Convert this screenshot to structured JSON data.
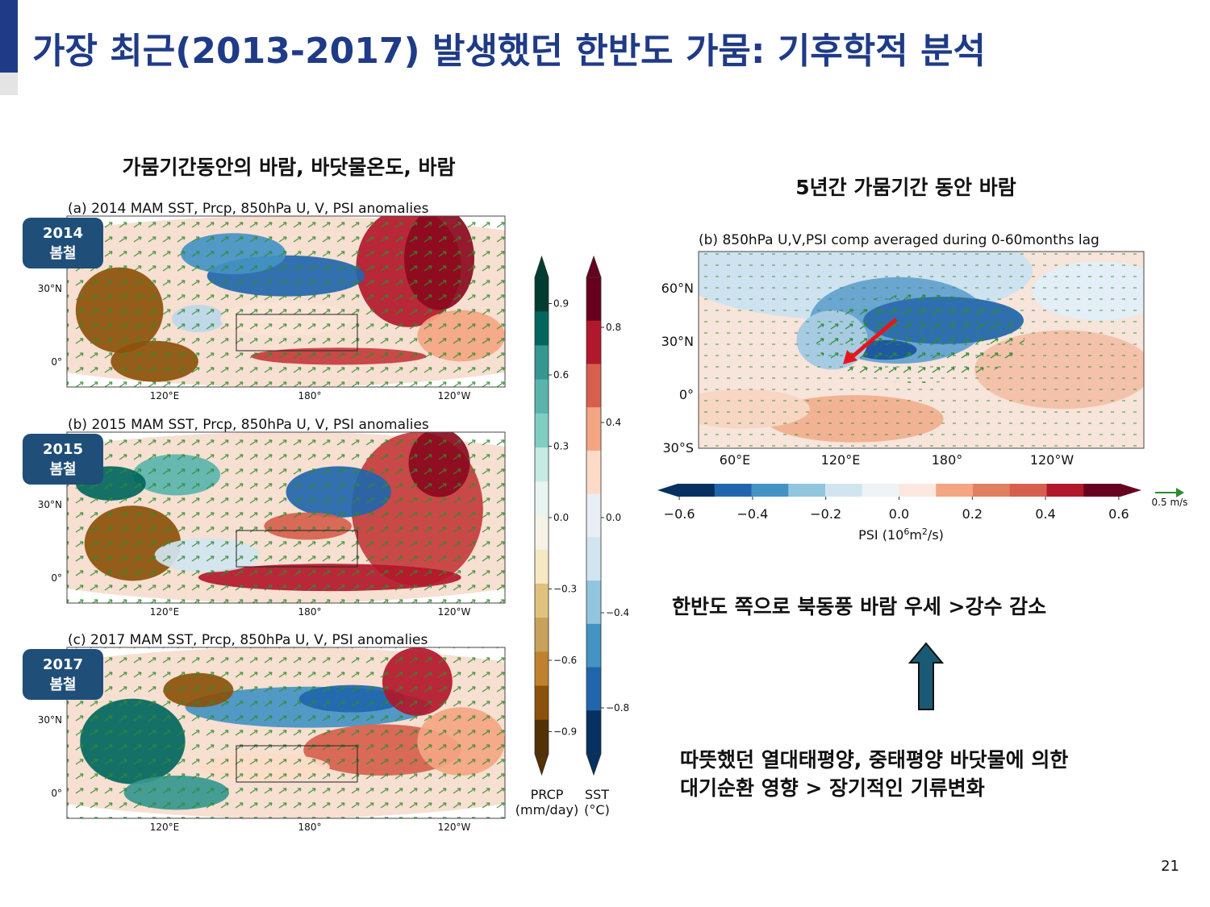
{
  "header": {
    "title": "가장 최근(2013-2017) 발생했던 한반도 가뭄: 기후학적 분석"
  },
  "left": {
    "heading": "가뭄기간동안의 바람, 바닷물온도, 바람",
    "panels": [
      {
        "title": "(a) 2014 MAM SST, Prcp, 850hPa U, V, PSI anomalies",
        "badge": [
          "2014",
          "봄철"
        ],
        "lat_labels": [
          "30°N",
          "0°"
        ],
        "lon_labels": [
          "120°E",
          "180°",
          "120°W"
        ]
      },
      {
        "title": "(b) 2015 MAM SST, Prcp, 850hPa U, V, PSI anomalies",
        "badge": [
          "2015",
          "봄철"
        ],
        "lat_labels": [
          "30°N",
          "0°"
        ],
        "lon_labels": [
          "120°E",
          "180°",
          "120°W"
        ]
      },
      {
        "title": "(c) 2017 MAM SST, Prcp, 850hPa U, V, PSI anomalies",
        "badge": [
          "2017",
          "봄철"
        ],
        "lat_labels": [
          "30°N",
          "0°"
        ],
        "lon_labels": [
          "120°E",
          "180°",
          "120°W"
        ]
      }
    ],
    "prcp_colorbar": {
      "ticks": [
        {
          "value": 0.9,
          "label": "0.9"
        },
        {
          "value": 0.6,
          "label": "0.6"
        },
        {
          "value": 0.3,
          "label": "0.3"
        },
        {
          "value": 0,
          "label": "0.0"
        },
        {
          "value": -0.3,
          "label": "−0.3"
        },
        {
          "value": -0.6,
          "label": "−0.6"
        },
        {
          "value": -0.9,
          "label": "−0.9"
        }
      ],
      "label": [
        "PRCP",
        "(mm/day)"
      ]
    },
    "sst_colorbar": {
      "ticks": [
        {
          "value": 0.8,
          "label": "0.8"
        },
        {
          "value": 0.4,
          "label": "0.4"
        },
        {
          "value": 0,
          "label": "0.0"
        },
        {
          "value": -0.4,
          "label": "−0.4"
        },
        {
          "value": -0.8,
          "label": "−0.8"
        }
      ],
      "label": [
        "SST",
        "(°C)"
      ]
    }
  },
  "right": {
    "heading": "5년간 가뭄기간 동안 바람",
    "map": {
      "title": "(b) 850hPa U,V,PSI comp averaged during 0-60months lag",
      "lat_labels": [
        "60°N",
        "30°N",
        "0°",
        "30°S"
      ],
      "lon_labels": [
        "60°E",
        "120°E",
        "180°",
        "120°W"
      ]
    },
    "psi_colorbar": {
      "ticks": [
        {
          "value": -0.6,
          "label": "−0.6"
        },
        {
          "value": -0.4,
          "label": "−0.4"
        },
        {
          "value": -0.2,
          "label": "−0.2"
        },
        {
          "value": 0,
          "label": "0.0"
        },
        {
          "value": 0.2,
          "label": "0.2"
        },
        {
          "value": 0.4,
          "label": "0.4"
        },
        {
          "value": 0.6,
          "label": "0.6"
        }
      ],
      "label": [
        "PSI (10",
        "6",
        "m",
        "2",
        "/s)"
      ]
    },
    "vector_key": "0.5 m/s",
    "finding": "한반도 쪽으로 북동풍 바람 우세 >강수 감소",
    "cause": [
      "따뜻했던 열대태평양, 중태평양 바닷물에 의한",
      "대기순환 영향 > 장기적인 기류변화"
    ]
  },
  "footer": {
    "page": "21"
  }
}
